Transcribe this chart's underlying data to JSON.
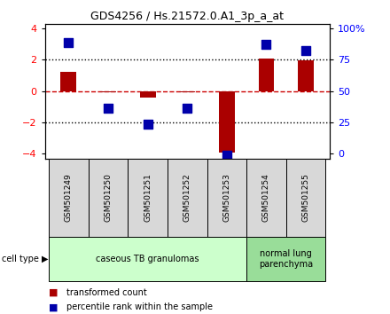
{
  "title": "GDS4256 / Hs.21572.0.A1_3p_a_at",
  "samples": [
    "GSM501249",
    "GSM501250",
    "GSM501251",
    "GSM501252",
    "GSM501253",
    "GSM501254",
    "GSM501255"
  ],
  "transformed_count": [
    1.2,
    -0.05,
    -0.4,
    -0.05,
    -3.9,
    2.05,
    1.95
  ],
  "percentile_rank": [
    3.1,
    -1.1,
    -2.1,
    -1.1,
    -4.1,
    3.0,
    2.6
  ],
  "ylim": [
    -4.3,
    4.3
  ],
  "yticks_left": [
    -4,
    -2,
    0,
    2,
    4
  ],
  "bar_color": "#aa0000",
  "dot_color": "#0000aa",
  "hline_color": "#cc0000",
  "dotted_line_color": "#000000",
  "groups": [
    {
      "label": "caseous TB granulomas",
      "samples": [
        0,
        1,
        2,
        3,
        4
      ],
      "color": "#ccffcc"
    },
    {
      "label": "normal lung\nparenchyma",
      "samples": [
        5,
        6
      ],
      "color": "#99dd99"
    }
  ],
  "cell_type_label": "cell type",
  "legend_items": [
    {
      "color": "#aa0000",
      "label": "transformed count"
    },
    {
      "color": "#0000aa",
      "label": "percentile rank within the sample"
    }
  ],
  "bar_width": 0.4,
  "dot_size": 55,
  "sample_box_color": "#d8d8d8"
}
